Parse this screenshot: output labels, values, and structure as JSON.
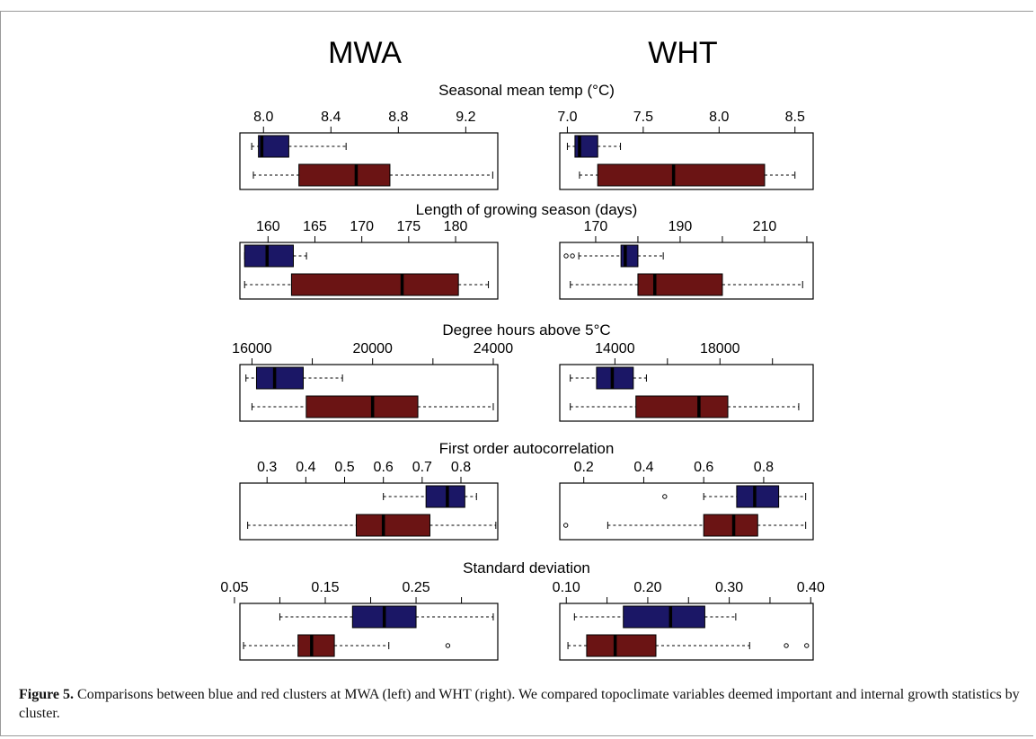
{
  "figure": {
    "site_left": "MWA",
    "site_right": "WHT",
    "colors": {
      "blue": "#1b1766",
      "red": "#6b1414",
      "line": "#000000"
    }
  },
  "chart_data": [
    {
      "type": "boxplot",
      "site": "MWA",
      "title": "Seasonal mean temp (°C)",
      "xlim": [
        7.86,
        9.39
      ],
      "ticks": [
        8.0,
        8.4,
        8.8,
        9.2
      ],
      "tick_labels": [
        "8.0",
        "8.4",
        "8.8",
        "9.2"
      ],
      "series": [
        {
          "name": "blue",
          "color": "#1b1766",
          "whisker_low": 7.93,
          "q1": 7.97,
          "median": 7.99,
          "q3": 8.15,
          "whisker_high": 8.49,
          "outliers": []
        },
        {
          "name": "red",
          "color": "#6b1414",
          "whisker_low": 7.94,
          "q1": 8.21,
          "median": 8.55,
          "q3": 8.75,
          "whisker_high": 9.36,
          "outliers": []
        }
      ]
    },
    {
      "type": "boxplot",
      "site": "WHT",
      "title": "Seasonal mean temp (°C)",
      "xlim": [
        6.95,
        8.62
      ],
      "ticks": [
        7.0,
        7.5,
        8.0,
        8.5
      ],
      "tick_labels": [
        "7.0",
        "7.5",
        "8.0",
        "8.5"
      ],
      "series": [
        {
          "name": "blue",
          "color": "#1b1766",
          "whisker_low": 7.0,
          "q1": 7.05,
          "median": 7.08,
          "q3": 7.2,
          "whisker_high": 7.35,
          "outliers": []
        },
        {
          "name": "red",
          "color": "#6b1414",
          "whisker_low": 7.08,
          "q1": 7.2,
          "median": 7.7,
          "q3": 8.3,
          "whisker_high": 8.5,
          "outliers": []
        }
      ]
    },
    {
      "type": "boxplot",
      "site": "MWA",
      "title": "Length of growing season (days)",
      "xlim": [
        157,
        184.5
      ],
      "ticks": [
        160,
        165,
        170,
        175,
        180
      ],
      "tick_labels": [
        "160",
        "165",
        "170",
        "175",
        "180"
      ],
      "series": [
        {
          "name": "blue",
          "color": "#1b1766",
          "whisker_low": 157.5,
          "q1": 157.5,
          "median": 159.9,
          "q3": 162.7,
          "whisker_high": 164.1,
          "outliers": []
        },
        {
          "name": "red",
          "color": "#6b1414",
          "whisker_low": 157.5,
          "q1": 162.5,
          "median": 174.3,
          "q3": 180.3,
          "whisker_high": 183.5,
          "outliers": []
        }
      ]
    },
    {
      "type": "boxplot",
      "site": "WHT",
      "title": "Length of growing season (days)",
      "xlim": [
        161.5,
        221.5
      ],
      "ticks": [
        170,
        180,
        190,
        200,
        210,
        220
      ],
      "tick_labels": [
        "170",
        "",
        "190",
        "",
        "210",
        ""
      ],
      "series": [
        {
          "name": "blue",
          "color": "#1b1766",
          "whisker_low": 166,
          "q1": 176,
          "median": 177,
          "q3": 180,
          "whisker_high": 186,
          "outliers": [
            163,
            164.5
          ]
        },
        {
          "name": "red",
          "color": "#6b1414",
          "whisker_low": 164,
          "q1": 180,
          "median": 184,
          "q3": 200,
          "whisker_high": 219,
          "outliers": []
        }
      ]
    },
    {
      "type": "boxplot",
      "site": "MWA",
      "title": "Degree hours above 5°C",
      "xlim": [
        15600,
        24150
      ],
      "ticks": [
        16000,
        18000,
        20000,
        22000,
        24000
      ],
      "tick_labels": [
        "16000",
        "",
        "20000",
        "",
        "24000"
      ],
      "series": [
        {
          "name": "blue",
          "color": "#1b1766",
          "whisker_low": 15800,
          "q1": 16150,
          "median": 16750,
          "q3": 17700,
          "whisker_high": 19000,
          "outliers": []
        },
        {
          "name": "red",
          "color": "#6b1414",
          "whisker_low": 16000,
          "q1": 17800,
          "median": 20000,
          "q3": 21500,
          "whisker_high": 24000,
          "outliers": []
        }
      ]
    },
    {
      "type": "boxplot",
      "site": "WHT",
      "title": "Degree hours above 5°C",
      "xlim": [
        11900,
        21550
      ],
      "ticks": [
        14000,
        16000,
        18000,
        20000
      ],
      "tick_labels": [
        "14000",
        "",
        "18000",
        ""
      ],
      "series": [
        {
          "name": "blue",
          "color": "#1b1766",
          "whisker_low": 12300,
          "q1": 13300,
          "median": 13900,
          "q3": 14700,
          "whisker_high": 15200,
          "outliers": []
        },
        {
          "name": "red",
          "color": "#6b1414",
          "whisker_low": 12300,
          "q1": 14800,
          "median": 17200,
          "q3": 18300,
          "whisker_high": 21000,
          "outliers": []
        }
      ]
    },
    {
      "type": "boxplot",
      "site": "MWA",
      "title": "First order autocorrelation",
      "xlim": [
        0.23,
        0.895
      ],
      "ticks": [
        0.3,
        0.4,
        0.5,
        0.6,
        0.7,
        0.8
      ],
      "tick_labels": [
        "0.3",
        "0.4",
        "0.5",
        "0.6",
        "0.7",
        "0.8"
      ],
      "series": [
        {
          "name": "blue",
          "color": "#1b1766",
          "whisker_low": 0.6,
          "q1": 0.71,
          "median": 0.765,
          "q3": 0.81,
          "whisker_high": 0.84,
          "outliers": []
        },
        {
          "name": "red",
          "color": "#6b1414",
          "whisker_low": 0.25,
          "q1": 0.53,
          "median": 0.6,
          "q3": 0.72,
          "whisker_high": 0.89,
          "outliers": []
        }
      ]
    },
    {
      "type": "boxplot",
      "site": "WHT",
      "title": "First order autocorrelation",
      "xlim": [
        0.12,
        0.965
      ],
      "ticks": [
        0.2,
        0.4,
        0.6,
        0.8
      ],
      "tick_labels": [
        "0.2",
        "0.4",
        "0.6",
        "0.8"
      ],
      "series": [
        {
          "name": "blue",
          "color": "#1b1766",
          "whisker_low": 0.6,
          "q1": 0.71,
          "median": 0.77,
          "q3": 0.85,
          "whisker_high": 0.94,
          "outliers": [
            0.47
          ]
        },
        {
          "name": "red",
          "color": "#6b1414",
          "whisker_low": 0.28,
          "q1": 0.6,
          "median": 0.7,
          "q3": 0.78,
          "whisker_high": 0.94,
          "outliers": [
            0.14
          ]
        }
      ]
    },
    {
      "type": "boxplot",
      "site": "MWA",
      "title": "Standard deviation",
      "xlim": [
        0.056,
        0.34
      ],
      "ticks": [
        0.05,
        0.1,
        0.15,
        0.2,
        0.25,
        0.3
      ],
      "tick_labels": [
        "0.05",
        "",
        "0.15",
        "",
        "0.25",
        ""
      ],
      "series": [
        {
          "name": "blue",
          "color": "#1b1766",
          "whisker_low": 0.1,
          "q1": 0.18,
          "median": 0.215,
          "q3": 0.25,
          "whisker_high": 0.335,
          "outliers": []
        },
        {
          "name": "red",
          "color": "#6b1414",
          "whisker_low": 0.06,
          "q1": 0.12,
          "median": 0.135,
          "q3": 0.16,
          "whisker_high": 0.22,
          "outliers": [
            0.285
          ]
        }
      ]
    },
    {
      "type": "boxplot",
      "site": "WHT",
      "title": "Standard deviation",
      "xlim": [
        0.092,
        0.403
      ],
      "ticks": [
        0.1,
        0.15,
        0.2,
        0.25,
        0.3,
        0.35,
        0.4
      ],
      "tick_labels": [
        "0.10",
        "",
        "0.20",
        "",
        "0.30",
        "",
        "0.40"
      ],
      "series": [
        {
          "name": "blue",
          "color": "#1b1766",
          "whisker_low": 0.11,
          "q1": 0.17,
          "median": 0.228,
          "q3": 0.27,
          "whisker_high": 0.308,
          "outliers": []
        },
        {
          "name": "red",
          "color": "#6b1414",
          "whisker_low": 0.102,
          "q1": 0.125,
          "median": 0.16,
          "q3": 0.21,
          "whisker_high": 0.325,
          "outliers": [
            0.37,
            0.395
          ]
        }
      ]
    }
  ],
  "caption": {
    "label": "Figure 5.",
    "text": " Comparisons between blue and red clusters at MWA (left) and WHT (right). We compared topoclimate variables deemed important and internal growth statistics by cluster."
  }
}
